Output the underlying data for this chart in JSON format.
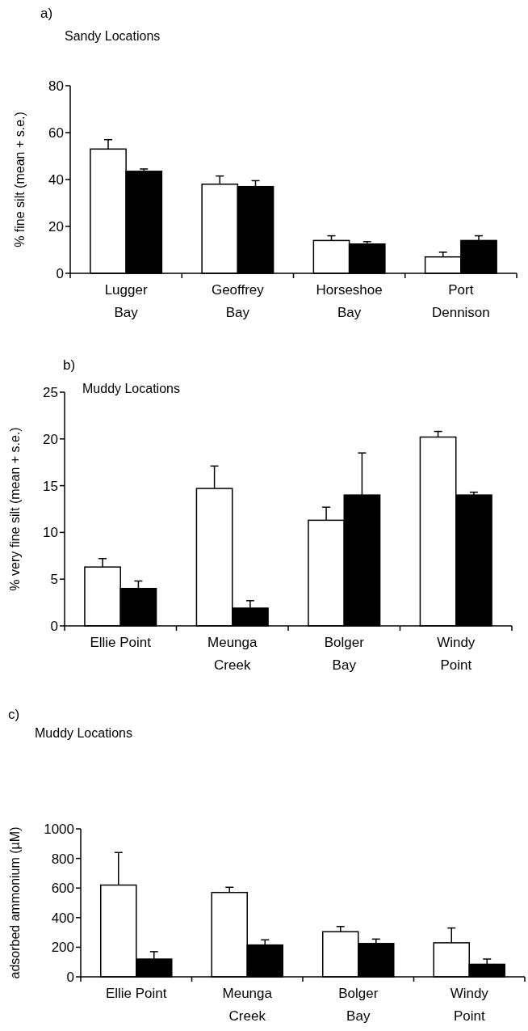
{
  "chart_data": [
    {
      "type": "bar",
      "title": "a)",
      "subtitle": "Sandy Locations",
      "ylabel": "% fine silt (mean + s.e.)",
      "categories": [
        "Lugger\nBay",
        "Geoffrey\nBay",
        "Horseshoe\nBay",
        "Port\nDennison"
      ],
      "series": [
        {
          "color": "#ffffff",
          "values": [
            53,
            38,
            14,
            7
          ],
          "errors": [
            [
              53,
              57
            ],
            [
              38,
              41.5
            ],
            [
              14,
              16
            ],
            [
              7,
              9
            ]
          ]
        },
        {
          "color": "#000000",
          "values": [
            43.5,
            37,
            12.5,
            14
          ],
          "errors": [
            [
              43.5,
              44.5
            ],
            [
              37,
              39.5
            ],
            [
              12.5,
              13.5
            ],
            [
              14,
              16
            ]
          ]
        }
      ],
      "ylim": [
        0,
        80
      ],
      "yticks": [
        0,
        20,
        40,
        60,
        80
      ],
      "grid": false
    },
    {
      "type": "bar",
      "title": "b)",
      "subtitle": "Muddy Locations",
      "ylabel": "% very fine silt (mean + s.e.)",
      "categories": [
        "Ellie Point",
        "Meunga\nCreek",
        "Bolger\nBay",
        "Windy\nPoint"
      ],
      "series": [
        {
          "color": "#ffffff",
          "values": [
            6.3,
            14.7,
            11.3,
            20.2
          ],
          "errors": [
            [
              6.3,
              7.2
            ],
            [
              14.7,
              17.1
            ],
            [
              11.3,
              12.7
            ],
            [
              20.2,
              20.8
            ]
          ]
        },
        {
          "color": "#000000",
          "values": [
            4,
            1.9,
            14,
            14
          ],
          "errors": [
            [
              4,
              4.8
            ],
            [
              1.9,
              2.7
            ],
            [
              14,
              18.5
            ],
            [
              14,
              14.3
            ]
          ]
        }
      ],
      "ylim": [
        0,
        25
      ],
      "yticks": [
        0,
        5,
        10,
        15,
        20,
        25
      ],
      "grid": false
    },
    {
      "type": "bar",
      "title": "c)",
      "subtitle": "Muddy Locations",
      "ylabel": "adsorbed ammonium (µM)",
      "categories": [
        "Ellie Point",
        "Meunga\nCreek",
        "Bolger\nBay",
        "Windy\nPoint"
      ],
      "series": [
        {
          "color": "#ffffff",
          "values": [
            620,
            570,
            305,
            230
          ],
          "errors": [
            [
              620,
              840
            ],
            [
              570,
              605
            ],
            [
              305,
              340
            ],
            [
              230,
              330
            ]
          ]
        },
        {
          "color": "#000000",
          "values": [
            120,
            215,
            225,
            85
          ],
          "errors": [
            [
              120,
              170
            ],
            [
              215,
              250
            ],
            [
              225,
              255
            ],
            [
              85,
              120
            ]
          ]
        }
      ],
      "ylim": [
        0,
        1000
      ],
      "yticks": [
        0,
        200,
        400,
        600,
        800,
        1000
      ],
      "grid": false
    }
  ]
}
